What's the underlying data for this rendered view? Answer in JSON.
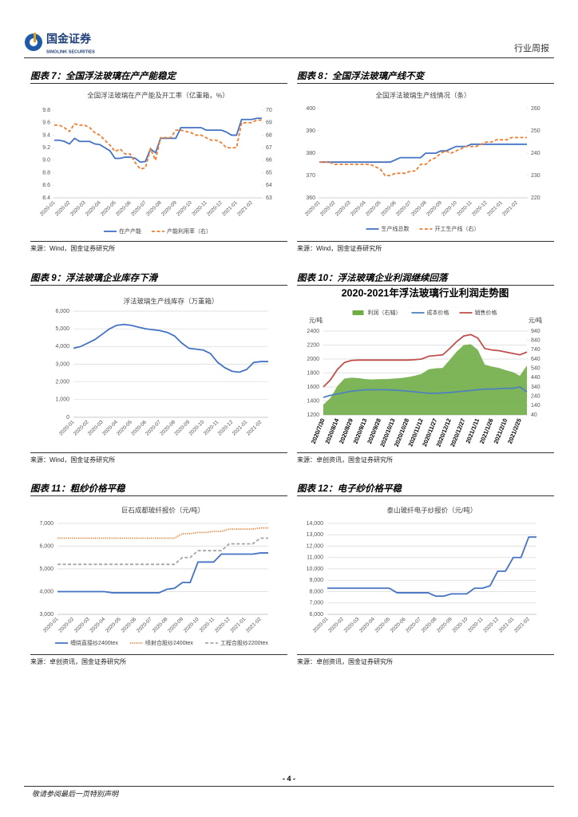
{
  "header": {
    "logo": "国金证券",
    "logo_en": "SINOLINK SECURITIES",
    "report_type": "行业周报"
  },
  "figures": [
    {
      "caption": "图表 7：全国浮法玻璃在产产能稳定",
      "source": "来源：Wind，国金证券研究所"
    },
    {
      "caption": "图表 8：全国浮法玻璃产线不变",
      "source": "来源：Wind，国金证券研究所"
    },
    {
      "caption": "图表 9：浮法玻璃企业库存下滑",
      "source": "来源：Wind，国金证券研究所"
    },
    {
      "caption": "图表 10：浮法玻璃企业利润继续回落",
      "source": "来源：卓创资讯，国金证券研究所"
    },
    {
      "caption": "图表 11：粗纱价格平稳",
      "source": "来源：卓创资讯，国金证券研究所"
    },
    {
      "caption": "图表 12：电子纱价格平稳",
      "source": "来源：卓创资讯，国金证券研究所"
    }
  ],
  "chart_data": [
    {
      "type": "line",
      "title": "全国浮法玻璃在产产能及开工率（亿重箱，%）",
      "categories": [
        "2020-01",
        null,
        null,
        "2020-02",
        null,
        null,
        "2020-03",
        null,
        null,
        "2020-04",
        null,
        null,
        "2020-05",
        null,
        null,
        "2020-06",
        null,
        null,
        "2020-07",
        null,
        null,
        "2020-08",
        null,
        null,
        "2020-09",
        null,
        null,
        "2020-10",
        null,
        null,
        "2020-11",
        null,
        null,
        "2020-12",
        null,
        null,
        "2021-01",
        null,
        null,
        "2021-02",
        null,
        null
      ],
      "series": [
        {
          "name": "在产产能",
          "color": "#4472c4",
          "values": [
            9.32,
            9.32,
            9.3,
            9.26,
            9.35,
            9.3,
            9.3,
            9.3,
            9.26,
            9.25,
            9.2,
            9.15,
            9.03,
            9.03,
            9.05,
            9.05,
            9.03,
            8.97,
            8.98,
            9.18,
            9.12,
            9.35,
            9.35,
            9.35,
            9.35,
            9.52,
            9.52,
            9.52,
            9.52,
            9.52,
            9.48,
            9.48,
            9.48,
            9.48,
            9.45,
            9.4,
            9.4,
            9.65,
            9.65,
            9.65,
            9.67,
            9.67
          ]
        },
        {
          "name": "产能利用率（右）",
          "color": "#ed7d31",
          "dash": "dashed",
          "axis": "y2",
          "values": [
            68.8,
            68.8,
            68.6,
            68.3,
            68.9,
            68.8,
            68.8,
            68.6,
            68.2,
            68.0,
            67.6,
            67.2,
            66.7,
            66.9,
            66.5,
            66.5,
            65.8,
            65.3,
            65.4,
            66.9,
            66.0,
            67.8,
            67.8,
            67.8,
            68.4,
            68.4,
            68.3,
            68.2,
            68.0,
            68.0,
            67.8,
            67.6,
            67.6,
            67.4,
            67.0,
            67.0,
            67.0,
            69.0,
            69.0,
            69.0,
            69.2,
            69.2
          ]
        }
      ],
      "ylim": [
        8.4,
        9.8
      ],
      "yticks": [
        8.4,
        8.6,
        8.8,
        {
          "value": 9,
          "label": "9.0"
        },
        9.2,
        9.4,
        9.6,
        9.8
      ],
      "y2lim": [
        63,
        70
      ],
      "y2ticks": [
        63,
        64,
        65,
        66,
        67,
        68,
        69,
        70
      ],
      "grid": false,
      "legend": "bottom"
    },
    {
      "type": "line",
      "title": "全国浮法玻璃生产线情况（条）",
      "categories": [
        "2020-01",
        null,
        null,
        "2020-02",
        null,
        null,
        "2020-03",
        null,
        null,
        "2020-04",
        null,
        null,
        "2020-05",
        null,
        null,
        "2020-06",
        null,
        null,
        "2020-07",
        null,
        null,
        "2020-08",
        null,
        null,
        "2020-09",
        null,
        null,
        "2020-10",
        null,
        null,
        "2020-11",
        null,
        null,
        "2020-12",
        null,
        null,
        "2021-01",
        null,
        null,
        "2021-02",
        null,
        null
      ],
      "series": [
        {
          "name": "生产线总数",
          "color": "#4472c4",
          "values": [
            376,
            376,
            376,
            376,
            376,
            376,
            376,
            376,
            376,
            376,
            376,
            376,
            376,
            376,
            376,
            377,
            378,
            378,
            378,
            378,
            378,
            380,
            380,
            380,
            381,
            381,
            382,
            383,
            383,
            383,
            384,
            384,
            384,
            384,
            384,
            384,
            384,
            384,
            384,
            384,
            384,
            384
          ]
        },
        {
          "name": "开工生产线（右）",
          "color": "#ed7d31",
          "dash": "dashed",
          "axis": "y2",
          "values": [
            236,
            236,
            236,
            235,
            235,
            235,
            235,
            235,
            235,
            235,
            235,
            234,
            233,
            230,
            230,
            231,
            231,
            231,
            232,
            232,
            235,
            235,
            237,
            238,
            240,
            241,
            240,
            241,
            242,
            243,
            243,
            243,
            244,
            245,
            245,
            246,
            246,
            246,
            247,
            247,
            247,
            247
          ]
        }
      ],
      "ylim": [
        360,
        400
      ],
      "yticks": [
        360,
        370,
        380,
        390,
        400
      ],
      "y2lim": [
        220,
        260
      ],
      "y2ticks": [
        220,
        230,
        240,
        250,
        260
      ],
      "grid": false,
      "legend": "bottom"
    },
    {
      "type": "line",
      "title": "浮法玻璃生产线库存（万重箱）",
      "categories": [
        "2020-01",
        null,
        "2020-02",
        null,
        "2020-03",
        null,
        "2020-04",
        null,
        "2020-05",
        null,
        "2020-06",
        null,
        "2020-07",
        null,
        "2020-08",
        null,
        "2020-09",
        null,
        "2020-10",
        null,
        "2020-11",
        null,
        "2020-12",
        null,
        "2021-01",
        null,
        "2021-02",
        null
      ],
      "values": [
        3900,
        4000,
        4200,
        4400,
        4700,
        5000,
        5200,
        5250,
        5200,
        5100,
        5000,
        4950,
        4900,
        4800,
        4600,
        4200,
        3900,
        3850,
        3800,
        3600,
        3100,
        2800,
        2600,
        2550,
        2700,
        3100,
        3150,
        3150
      ],
      "color": "#4472c4",
      "ylim": [
        0,
        6000
      ],
      "yticks": [
        0,
        {
          "value": 1000,
          "label": "1,000"
        },
        {
          "value": 2000,
          "label": "2,000"
        },
        {
          "value": 3000,
          "label": "3,000"
        },
        {
          "value": 4000,
          "label": "4,000"
        },
        {
          "value": 5000,
          "label": "5,000"
        },
        {
          "value": 6000,
          "label": "6,000"
        }
      ],
      "grid": true
    },
    {
      "type": "line",
      "title": "2020-2021年浮法玻璃行业利润走势图",
      "ylabel": "元/吨",
      "y2label": "元/吨",
      "categories": [
        "2020/7/30",
        null,
        "2020/8/14",
        null,
        "2020/8/29",
        null,
        "2020/9/13",
        null,
        "2020/9/28",
        null,
        "2020/10/13",
        null,
        "2020/10/28",
        null,
        "2020/11/12",
        null,
        "2020/11/27",
        null,
        "2020/12/12",
        null,
        "2020/12/27",
        null,
        "2021/1/11",
        null,
        "2021/1/26",
        null,
        "2021/2/10",
        null,
        "2021/2/25",
        null
      ],
      "series": [
        {
          "name": "利润（右轴）",
          "color": "#70ad47",
          "kind": "area",
          "axis": "y2",
          "values": [
            150,
            220,
            350,
            430,
            440,
            435,
            425,
            420,
            425,
            425,
            430,
            435,
            445,
            460,
            480,
            530,
            540,
            545,
            630,
            720,
            790,
            800,
            740,
            580,
            560,
            545,
            520,
            500,
            460,
            570
          ]
        },
        {
          "name": "成本价格",
          "color": "#4f81bd",
          "values": [
            1450,
            1480,
            1500,
            1520,
            1540,
            1550,
            1560,
            1560,
            1560,
            1560,
            1555,
            1550,
            1540,
            1530,
            1520,
            1510,
            1510,
            1515,
            1520,
            1530,
            1540,
            1550,
            1560,
            1570,
            1570,
            1575,
            1580,
            1580,
            1600,
            1530
          ]
        },
        {
          "name": "销售价格",
          "color": "#c0504d",
          "values": [
            1600,
            1700,
            1850,
            1950,
            1980,
            1985,
            1985,
            1985,
            1985,
            1985,
            1985,
            1985,
            1985,
            1990,
            2000,
            2040,
            2050,
            2060,
            2150,
            2250,
            2330,
            2350,
            2300,
            2150,
            2130,
            2120,
            2100,
            2080,
            2060,
            2100
          ]
        }
      ],
      "ylim": [
        1200,
        2400
      ],
      "yticks": [
        1200,
        1400,
        1600,
        1800,
        2000,
        2200,
        2400
      ],
      "y2lim": [
        40,
        940
      ],
      "y2ticks": [
        40,
        140,
        240,
        340,
        440,
        540,
        640,
        740,
        840,
        940
      ],
      "grid": true,
      "legend": "top"
    },
    {
      "type": "line",
      "title": "巨石成都玻纤报价（元/吨）",
      "categories": [
        "2020-01",
        null,
        "2020-02",
        null,
        "2020-03",
        null,
        "2020-04",
        null,
        "2020-05",
        null,
        "2020-06",
        null,
        "2020-07",
        null,
        "2020-08",
        null,
        "2020-09",
        null,
        "2020-10",
        null,
        "2020-11",
        null,
        "2020-12",
        null,
        "2021-01",
        null,
        "2021-02",
        null
      ],
      "series": [
        {
          "name": "缠绕直接纱2400tex",
          "color": "#4472c4",
          "values": [
            4000,
            4000,
            4000,
            4000,
            4000,
            4000,
            4000,
            3950,
            3950,
            3950,
            3950,
            3950,
            3950,
            3950,
            4100,
            4150,
            4400,
            4400,
            5300,
            5300,
            5300,
            5650,
            5650,
            5650,
            5650,
            5650,
            5700,
            5700
          ]
        },
        {
          "name": "喷射合股纱2400tex",
          "color": "#ed7d31",
          "dash": "dotted",
          "values": [
            6350,
            6350,
            6350,
            6350,
            6350,
            6350,
            6350,
            6350,
            6350,
            6350,
            6350,
            6350,
            6350,
            6350,
            6350,
            6350,
            6550,
            6550,
            6600,
            6600,
            6650,
            6650,
            6750,
            6750,
            6750,
            6750,
            6800,
            6800
          ]
        },
        {
          "name": "工程合股纱2200tex",
          "color": "#a5a5a5",
          "dash": "dashed",
          "values": [
            5200,
            5200,
            5200,
            5200,
            5200,
            5200,
            5200,
            5200,
            5200,
            5200,
            5200,
            5200,
            5200,
            5200,
            5200,
            5200,
            5500,
            5500,
            5800,
            5800,
            5800,
            5800,
            6100,
            6100,
            6100,
            6100,
            6350,
            6350
          ]
        }
      ],
      "ylim": [
        3000,
        7000
      ],
      "yticks": [
        {
          "value": 3000,
          "label": "3,000"
        },
        {
          "value": 4000,
          "label": "4,000"
        },
        {
          "value": 5000,
          "label": "5,000"
        },
        {
          "value": 6000,
          "label": "6,000"
        },
        {
          "value": 7000,
          "label": "7,000"
        }
      ],
      "grid": true,
      "legend": "bottom"
    },
    {
      "type": "line",
      "title": "泰山玻纤电子纱报价（元/吨）",
      "categories": [
        "2020-01",
        null,
        "2020-02",
        null,
        "2020-03",
        null,
        "2020-04",
        null,
        "2020-05",
        null,
        "2020-06",
        null,
        "2020-07",
        null,
        "2020-08",
        null,
        "2020-09",
        null,
        "2020-10",
        null,
        "2020-11",
        null,
        "2020-12",
        null,
        "2021-01",
        null,
        "2021-02",
        null
      ],
      "values": [
        8300,
        8300,
        8300,
        8300,
        8300,
        8300,
        8300,
        8300,
        8300,
        7900,
        7900,
        7900,
        7900,
        7900,
        7600,
        7600,
        7800,
        7800,
        7800,
        8300,
        8300,
        8500,
        9800,
        9800,
        11000,
        11000,
        12800,
        12800
      ],
      "color": "#4472c4",
      "ylim": [
        6000,
        14000
      ],
      "yticks": [
        {
          "value": 6000,
          "label": "6,000"
        },
        {
          "value": 7000,
          "label": "7,000"
        },
        {
          "value": 8000,
          "label": "8,000"
        },
        {
          "value": 9000,
          "label": "9,000"
        },
        {
          "value": 10000,
          "label": "10,000"
        },
        {
          "value": 11000,
          "label": "11,000"
        },
        {
          "value": 12000,
          "label": "12,000"
        },
        {
          "value": 13000,
          "label": "13,000"
        },
        {
          "value": 14000,
          "label": "14,000"
        }
      ],
      "grid": true
    }
  ],
  "footer": {
    "page": "- 4 -",
    "disclaimer": "敬请参阅最后一页特别声明"
  }
}
